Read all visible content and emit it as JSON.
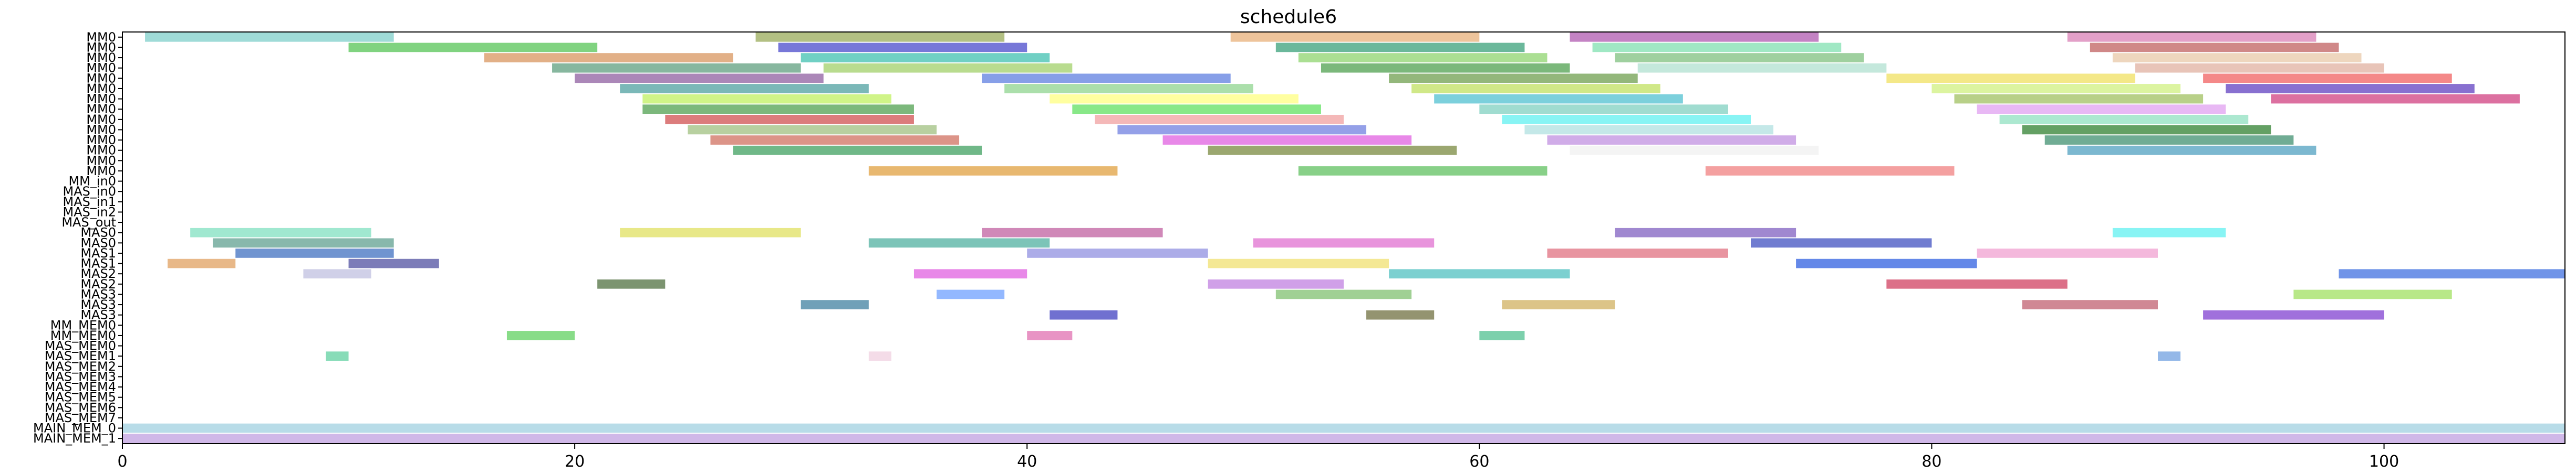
{
  "chart_data": {
    "type": "gantt",
    "title": "schedule6",
    "xlim": [
      0,
      108
    ],
    "xticks": [
      0,
      20,
      40,
      60,
      80,
      100
    ],
    "grid": false,
    "legend": "none",
    "resources": [
      "MM0",
      "MM0",
      "MM0",
      "MM0",
      "MM0",
      "MM0",
      "MM0",
      "MM0",
      "MM0",
      "MM0",
      "MM0",
      "MM0",
      "MM0",
      "MM0",
      "MM_in0",
      "MAS_in0",
      "MAS_in1",
      "MAS_in2",
      "MAS_out",
      "MAS0",
      "MAS0",
      "MAS1",
      "MAS1",
      "MAS2",
      "MAS2",
      "MAS3",
      "MAS3",
      "MAS3",
      "MM_MEM0",
      "MM_MEM0",
      "MAS_MEM0",
      "MAS_MEM1",
      "MAS_MEM2",
      "MAS_MEM3",
      "MAS_MEM4",
      "MAS_MEM5",
      "MAS_MEM6",
      "MAS_MEM7",
      "MAIN_MEM_0",
      "MAIN_MEM_1"
    ],
    "sample_bars": [
      {
        "row": 0,
        "start": 1,
        "end": 12,
        "color": "#7fcfc9"
      },
      {
        "row": 0,
        "start": 28,
        "end": 39,
        "color": "#9aab5a"
      },
      {
        "row": 0,
        "start": 49,
        "end": 60,
        "color": "#e8b07a"
      },
      {
        "row": 0,
        "start": 64,
        "end": 75,
        "color": "#b05ab0"
      },
      {
        "row": 0,
        "start": 86,
        "end": 97,
        "color": "#d980b5"
      },
      {
        "row": 1,
        "start": 10,
        "end": 21,
        "color": "#55c455"
      },
      {
        "row": 1,
        "start": 29,
        "end": 40,
        "color": "#4a4acb"
      },
      {
        "row": 1,
        "start": 51,
        "end": 62,
        "color": "#3aa07a"
      },
      {
        "row": 1,
        "start": 65,
        "end": 76,
        "color": "#80e0b0"
      },
      {
        "row": 1,
        "start": 87,
        "end": 98,
        "color": "#c06060"
      },
      {
        "row": 2,
        "start": 16,
        "end": 27,
        "color": "#d8965f"
      },
      {
        "row": 2,
        "start": 30,
        "end": 41,
        "color": "#40c0b0"
      },
      {
        "row": 2,
        "start": 52,
        "end": 63,
        "color": "#8fd46f"
      },
      {
        "row": 2,
        "start": 66,
        "end": 77,
        "color": "#7fc07f"
      },
      {
        "row": 2,
        "start": 88,
        "end": 99,
        "color": "#e8c8a8"
      },
      {
        "row": 3,
        "start": 19,
        "end": 30,
        "color": "#5f9f7f"
      },
      {
        "row": 3,
        "start": 31,
        "end": 42,
        "color": "#a2d06a"
      },
      {
        "row": 3,
        "start": 53,
        "end": 64,
        "color": "#4fa04f"
      },
      {
        "row": 3,
        "start": 67,
        "end": 78,
        "color": "#b0e0d0"
      },
      {
        "row": 3,
        "start": 89,
        "end": 100,
        "color": "#e0b0a0"
      },
      {
        "row": 4,
        "start": 20,
        "end": 31,
        "color": "#8f5fa0"
      },
      {
        "row": 4,
        "start": 38,
        "end": 49,
        "color": "#5f7fe0"
      },
      {
        "row": 4,
        "start": 56,
        "end": 67,
        "color": "#6f9f4f"
      },
      {
        "row": 4,
        "start": 78,
        "end": 89,
        "color": "#f0e060"
      },
      {
        "row": 4,
        "start": 92,
        "end": 103,
        "color": "#f06060"
      },
      {
        "row": 5,
        "start": 22,
        "end": 33,
        "color": "#4fa0a0"
      },
      {
        "row": 5,
        "start": 39,
        "end": 50,
        "color": "#8fd48f"
      },
      {
        "row": 5,
        "start": 57,
        "end": 68,
        "color": "#c0e060"
      },
      {
        "row": 5,
        "start": 80,
        "end": 91,
        "color": "#d0f080"
      },
      {
        "row": 5,
        "start": 93,
        "end": 104,
        "color": "#6040c0"
      },
      {
        "row": 6,
        "start": 23,
        "end": 34,
        "color": "#c0f060"
      },
      {
        "row": 6,
        "start": 41,
        "end": 52,
        "color": "#ffff80"
      },
      {
        "row": 6,
        "start": 58,
        "end": 69,
        "color": "#50c0d0"
      },
      {
        "row": 6,
        "start": 81,
        "end": 92,
        "color": "#a0c060"
      },
      {
        "row": 6,
        "start": 95,
        "end": 106,
        "color": "#d04080"
      },
      {
        "row": 7,
        "start": 23,
        "end": 35,
        "color": "#50a050"
      },
      {
        "row": 7,
        "start": 42,
        "end": 53,
        "color": "#60e060"
      },
      {
        "row": 7,
        "start": 60,
        "end": 71,
        "color": "#80d0c0"
      },
      {
        "row": 7,
        "start": 82,
        "end": 93,
        "color": "#e0a0f0"
      },
      {
        "row": 8,
        "start": 24,
        "end": 35,
        "color": "#d05050"
      },
      {
        "row": 8,
        "start": 43,
        "end": 54,
        "color": "#f0a0a0"
      },
      {
        "row": 8,
        "start": 61,
        "end": 72,
        "color": "#60f0f0"
      },
      {
        "row": 8,
        "start": 83,
        "end": 94,
        "color": "#90e0c0"
      },
      {
        "row": 9,
        "start": 25,
        "end": 36,
        "color": "#a0c080"
      },
      {
        "row": 9,
        "start": 44,
        "end": 55,
        "color": "#7080e0"
      },
      {
        "row": 9,
        "start": 62,
        "end": 73,
        "color": "#b0e0e0"
      },
      {
        "row": 9,
        "start": 84,
        "end": 95,
        "color": "#308030"
      },
      {
        "row": 10,
        "start": 26,
        "end": 37,
        "color": "#d07060"
      },
      {
        "row": 10,
        "start": 46,
        "end": 57,
        "color": "#e060e0"
      },
      {
        "row": 10,
        "start": 63,
        "end": 74,
        "color": "#c090e0"
      },
      {
        "row": 10,
        "start": 85,
        "end": 96,
        "color": "#409070"
      },
      {
        "row": 11,
        "start": 27,
        "end": 38,
        "color": "#40a060"
      },
      {
        "row": 11,
        "start": 48,
        "end": 59,
        "color": "#7a8a40"
      },
      {
        "row": 11,
        "start": 64,
        "end": 75,
        "color": "#f0f0f0"
      },
      {
        "row": 11,
        "start": 86,
        "end": 97,
        "color": "#50a0c0"
      },
      {
        "row": 13,
        "start": 33,
        "end": 44,
        "color": "#e0a040"
      },
      {
        "row": 13,
        "start": 52,
        "end": 63,
        "color": "#60c060"
      },
      {
        "row": 13,
        "start": 70,
        "end": 81,
        "color": "#f08080"
      },
      {
        "row": 19,
        "start": 3,
        "end": 11,
        "color": "#80e0c0"
      },
      {
        "row": 19,
        "start": 22,
        "end": 30,
        "color": "#e0e060"
      },
      {
        "row": 19,
        "start": 38,
        "end": 46,
        "color": "#c060a0"
      },
      {
        "row": 19,
        "start": 66,
        "end": 74,
        "color": "#8060c0"
      },
      {
        "row": 19,
        "start": 88,
        "end": 93,
        "color": "#60f0f0"
      },
      {
        "row": 20,
        "start": 4,
        "end": 12,
        "color": "#60a090"
      },
      {
        "row": 20,
        "start": 33,
        "end": 41,
        "color": "#50b0a0"
      },
      {
        "row": 20,
        "start": 50,
        "end": 58,
        "color": "#e070d0"
      },
      {
        "row": 20,
        "start": 72,
        "end": 80,
        "color": "#4050c0"
      },
      {
        "row": 21,
        "start": 5,
        "end": 12,
        "color": "#4070c0"
      },
      {
        "row": 21,
        "start": 40,
        "end": 48,
        "color": "#9090e0"
      },
      {
        "row": 21,
        "start": 63,
        "end": 71,
        "color": "#e07080"
      },
      {
        "row": 21,
        "start": 82,
        "end": 90,
        "color": "#f0a0d0"
      },
      {
        "row": 22,
        "start": 2,
        "end": 5,
        "color": "#e0a060"
      },
      {
        "row": 22,
        "start": 10,
        "end": 14,
        "color": "#5050a0"
      },
      {
        "row": 22,
        "start": 48,
        "end": 56,
        "color": "#f0e070"
      },
      {
        "row": 22,
        "start": 74,
        "end": 82,
        "color": "#3060e0"
      },
      {
        "row": 23,
        "start": 8,
        "end": 11,
        "color": "#c0c0e0"
      },
      {
        "row": 23,
        "start": 35,
        "end": 40,
        "color": "#e060e0"
      },
      {
        "row": 23,
        "start": 56,
        "end": 64,
        "color": "#50c0c0"
      },
      {
        "row": 23,
        "start": 98,
        "end": 108,
        "color": "#4070e0"
      },
      {
        "row": 24,
        "start": 21,
        "end": 24,
        "color": "#507040"
      },
      {
        "row": 24,
        "start": 48,
        "end": 54,
        "color": "#c080e0"
      },
      {
        "row": 24,
        "start": 78,
        "end": 86,
        "color": "#d04060"
      },
      {
        "row": 25,
        "start": 36,
        "end": 39,
        "color": "#6fa0ff"
      },
      {
        "row": 25,
        "start": 51,
        "end": 57,
        "color": "#80c070"
      },
      {
        "row": 25,
        "start": 96,
        "end": 103,
        "color": "#a0e060"
      },
      {
        "row": 26,
        "start": 30,
        "end": 33,
        "color": "#4080a0"
      },
      {
        "row": 26,
        "start": 61,
        "end": 66,
        "color": "#d0b060"
      },
      {
        "row": 26,
        "start": 84,
        "end": 90,
        "color": "#c06070"
      },
      {
        "row": 27,
        "start": 41,
        "end": 44,
        "color": "#4040c0"
      },
      {
        "row": 27,
        "start": 55,
        "end": 58,
        "color": "#707040"
      },
      {
        "row": 27,
        "start": 92,
        "end": 100,
        "color": "#8040d0"
      },
      {
        "row": 29,
        "start": 17,
        "end": 20,
        "color": "#60d060"
      },
      {
        "row": 29,
        "start": 40,
        "end": 42,
        "color": "#e070b0"
      },
      {
        "row": 29,
        "start": 60,
        "end": 62,
        "color": "#50c090"
      },
      {
        "row": 31,
        "start": 9,
        "end": 10,
        "color": "#60d0a0"
      },
      {
        "row": 31,
        "start": 33,
        "end": 34,
        "color": "#f0d0e0"
      },
      {
        "row": 31,
        "start": 90,
        "end": 91,
        "color": "#70a0e0"
      },
      {
        "row": 38,
        "start": 0,
        "end": 108,
        "color": "#a0d0e0"
      },
      {
        "row": 39,
        "start": 0,
        "end": 108,
        "color": "#c0a0e0"
      }
    ]
  }
}
